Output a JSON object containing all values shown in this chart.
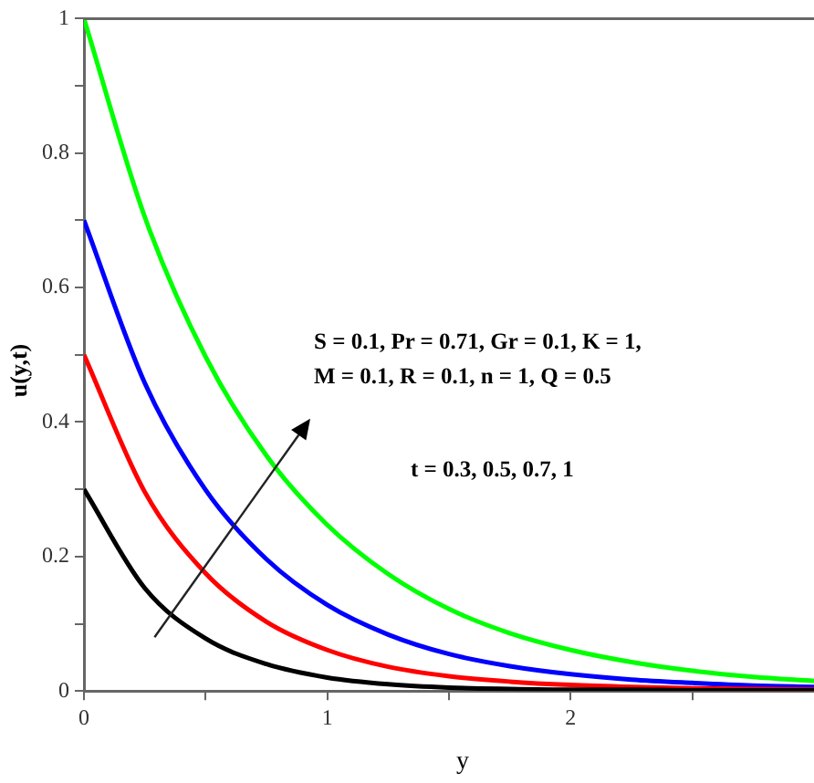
{
  "chart_data": {
    "type": "line",
    "xlabel": "y",
    "ylabel": "u(y,t)",
    "annotations": [
      "S = 0.1, Pr = 0.71, Gr = 0.1, K = 1,",
      "M = 0.1, R = 0.1, n = 1, Q = 0.5",
      "t = 0.3, 0.5, 0.7, 1"
    ],
    "x": [
      0,
      0.25,
      0.5,
      0.75,
      1,
      1.25,
      1.5,
      1.75,
      2,
      2.25,
      2.5,
      2.75,
      3
    ],
    "series": [
      {
        "color": "#000000",
        "values": [
          0.3,
          0.153,
          0.078,
          0.04,
          0.02,
          0.01,
          0.005,
          0.003,
          0.002,
          0.002,
          0.001,
          0.001,
          0.001
        ]
      },
      {
        "color": "#ff0000",
        "values": [
          0.5,
          0.296,
          0.175,
          0.103,
          0.061,
          0.036,
          0.022,
          0.014,
          0.009,
          0.006,
          0.004,
          0.003,
          0.002
        ]
      },
      {
        "color": "#0000ff",
        "values": [
          0.7,
          0.458,
          0.299,
          0.196,
          0.128,
          0.084,
          0.055,
          0.037,
          0.025,
          0.017,
          0.012,
          0.008,
          0.006
        ]
      },
      {
        "color": "#00ff00",
        "values": [
          1,
          0.705,
          0.497,
          0.35,
          0.247,
          0.174,
          0.122,
          0.086,
          0.061,
          0.043,
          0.03,
          0.021,
          0.015
        ]
      }
    ],
    "xlim": [
      0,
      3
    ],
    "ylim": [
      0,
      1
    ],
    "xticks": [
      0,
      {
        "value": 0.5,
        "label": null
      },
      1,
      {
        "value": 1.5,
        "label": null
      },
      2,
      {
        "value": 2.5,
        "label": null
      }
    ],
    "yticks": [
      0,
      {
        "value": 0.1,
        "label": null
      },
      0.2,
      {
        "value": 0.3,
        "label": null
      },
      0.4,
      {
        "value": 0.5,
        "label": null
      },
      0.6,
      {
        "value": 0.7,
        "label": null
      },
      0.8,
      {
        "value": 0.9,
        "label": null
      },
      1
    ],
    "grid": false,
    "legend": false,
    "marker": "none",
    "line_style": "solid"
  }
}
